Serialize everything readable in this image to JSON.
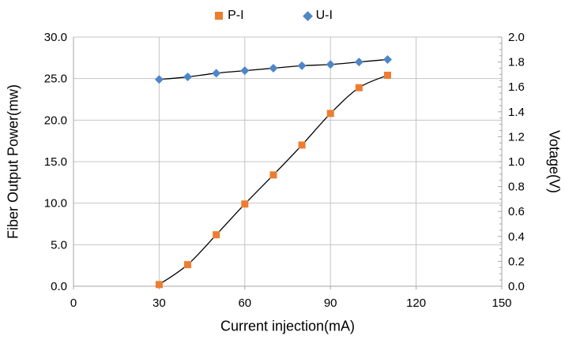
{
  "legend": {
    "items": [
      {
        "label": "P-I",
        "marker": "square",
        "color": "#ED7D31"
      },
      {
        "label": "U-I",
        "marker": "diamond",
        "color": "#4E86C8"
      }
    ]
  },
  "chart_data": {
    "type": "scatter",
    "title": "",
    "xlabel": "Current injection(mA)",
    "ylabel_left": "Fiber Output Power(mw)",
    "ylabel_right": "Votage(V)",
    "xlim": [
      0,
      150
    ],
    "ylim_left": [
      0,
      30
    ],
    "ylim_right": [
      0,
      2
    ],
    "xticks": [
      "0",
      "30",
      "60",
      "90",
      "120",
      "150"
    ],
    "yticks_left": [
      "0.0",
      "5.0",
      "10.0",
      "15.0",
      "20.0",
      "25.0",
      "30.0"
    ],
    "yticks_right": [
      "0.0",
      "0.2",
      "0.4",
      "0.6",
      "0.8",
      "1.0",
      "1.2",
      "1.4",
      "1.6",
      "1.8",
      "2.0"
    ],
    "right_axis_minor_tick_step": 0.05,
    "grid": true,
    "grid_color": "#C4C4C4",
    "axis_color": "#A6A6A6",
    "tick_label_color": "#000000",
    "legend_position": "top-center",
    "series": [
      {
        "name": "P-I",
        "axis": "left",
        "marker": "square",
        "marker_color": "#ED7D31",
        "line_color": "#000000",
        "x": [
          30,
          40,
          50,
          60,
          70,
          80,
          90,
          100,
          110
        ],
        "y": [
          0.2,
          2.6,
          6.2,
          9.9,
          13.4,
          17.0,
          20.8,
          23.9,
          25.4
        ]
      },
      {
        "name": "U-I",
        "axis": "right",
        "marker": "diamond",
        "marker_color": "#4E86C8",
        "line_color": "#000000",
        "x": [
          30,
          40,
          50,
          60,
          70,
          80,
          90,
          100,
          110
        ],
        "y": [
          1.66,
          1.68,
          1.71,
          1.73,
          1.75,
          1.77,
          1.78,
          1.8,
          1.82
        ]
      }
    ]
  }
}
